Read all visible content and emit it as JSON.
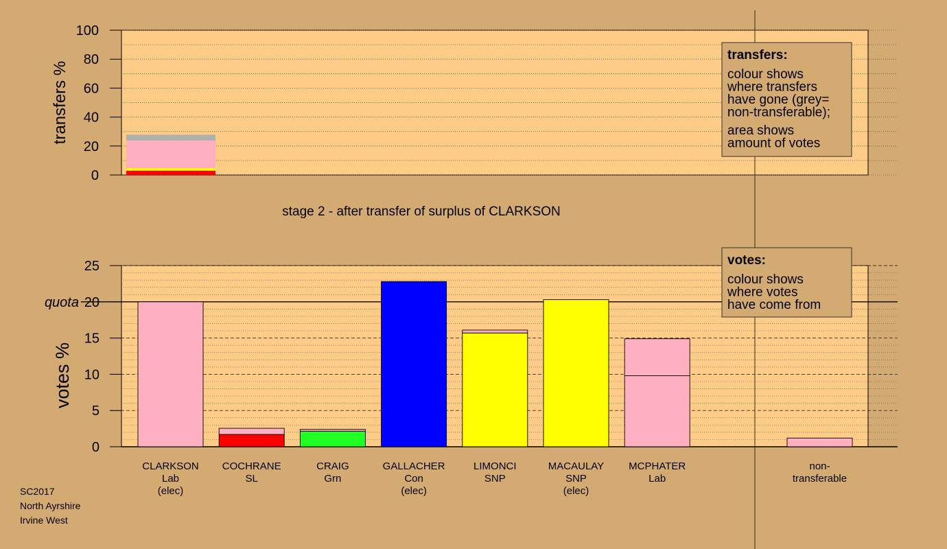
{
  "colors": {
    "background": "#d4aa73",
    "panel": "#ffcc88",
    "party": {
      "Lab": "#ffb0c0",
      "SL": "#ff0000",
      "Grn": "#22ff22",
      "Con": "#0000ff",
      "SNP": "#ffff00",
      "nontransferable": "#b0b0b0"
    }
  },
  "footer": [
    "SC2017",
    "North Ayrshire",
    "Irvine West"
  ],
  "chart_data": [
    {
      "type": "bar",
      "id": "transfers",
      "title": "stage 2 - after transfer of surplus of CLARKSON",
      "ylabel": "transfers %",
      "ylim": [
        0,
        100
      ],
      "yticks": [
        0,
        20,
        40,
        60,
        80,
        100
      ],
      "grid": "dotted",
      "legend": {
        "placement": "top-right",
        "title": "transfers:",
        "lines": [
          "colour shows",
          "where transfers",
          "have gone (grey=",
          "non-transferable);"
        ],
        "lines2": [
          "area shows",
          "amount of votes"
        ]
      },
      "series": [
        {
          "to": "SL",
          "value": 3.0
        },
        {
          "to": "SNP",
          "value": 1.8
        },
        {
          "to": "Lab",
          "value": 19.0
        },
        {
          "to": "nontransferable",
          "value": 4.0
        }
      ]
    },
    {
      "type": "bar",
      "id": "votes",
      "ylabel": "votes %",
      "ylim": [
        0,
        25
      ],
      "yticks": [
        0,
        5,
        10,
        15,
        20,
        25
      ],
      "quota": 20,
      "quota_label": "quota",
      "grid": "dashed",
      "legend": {
        "placement": "top-right",
        "title": "votes:",
        "lines": [
          "colour shows",
          "where votes",
          "have come from"
        ]
      },
      "categories": [
        {
          "name": "CLARKSON",
          "party": "Lab",
          "status": "(elec)",
          "segments": [
            {
              "party": "Lab",
              "value": 20.0
            }
          ]
        },
        {
          "name": "COCHRANE",
          "party": "SL",
          "status": "",
          "segments": [
            {
              "party": "SL",
              "value": 1.7
            },
            {
              "party": "Lab",
              "value": 0.85
            }
          ]
        },
        {
          "name": "CRAIG",
          "party": "Grn",
          "status": "",
          "segments": [
            {
              "party": "Grn",
              "value": 2.15
            },
            {
              "party": "Lab",
              "value": 0.25
            }
          ]
        },
        {
          "name": "GALLACHER",
          "party": "Con",
          "status": "(elec)",
          "segments": [
            {
              "party": "Con",
              "value": 22.8
            }
          ]
        },
        {
          "name": "LIMONCI",
          "party": "SNP",
          "status": "",
          "segments": [
            {
              "party": "SNP",
              "value": 15.7
            },
            {
              "party": "Lab",
              "value": 0.4
            }
          ]
        },
        {
          "name": "MACAULAY",
          "party": "SNP",
          "status": "(elec)",
          "segments": [
            {
              "party": "SNP",
              "value": 20.3
            }
          ]
        },
        {
          "name": "MCPHATER",
          "party": "Lab",
          "status": "",
          "segments": [
            {
              "party": "Lab",
              "value": 9.8
            },
            {
              "party": "Lab",
              "value": 5.1
            }
          ]
        }
      ],
      "nontransferable": {
        "label1": "non-",
        "label2": "transferable",
        "value": 1.2
      }
    }
  ]
}
